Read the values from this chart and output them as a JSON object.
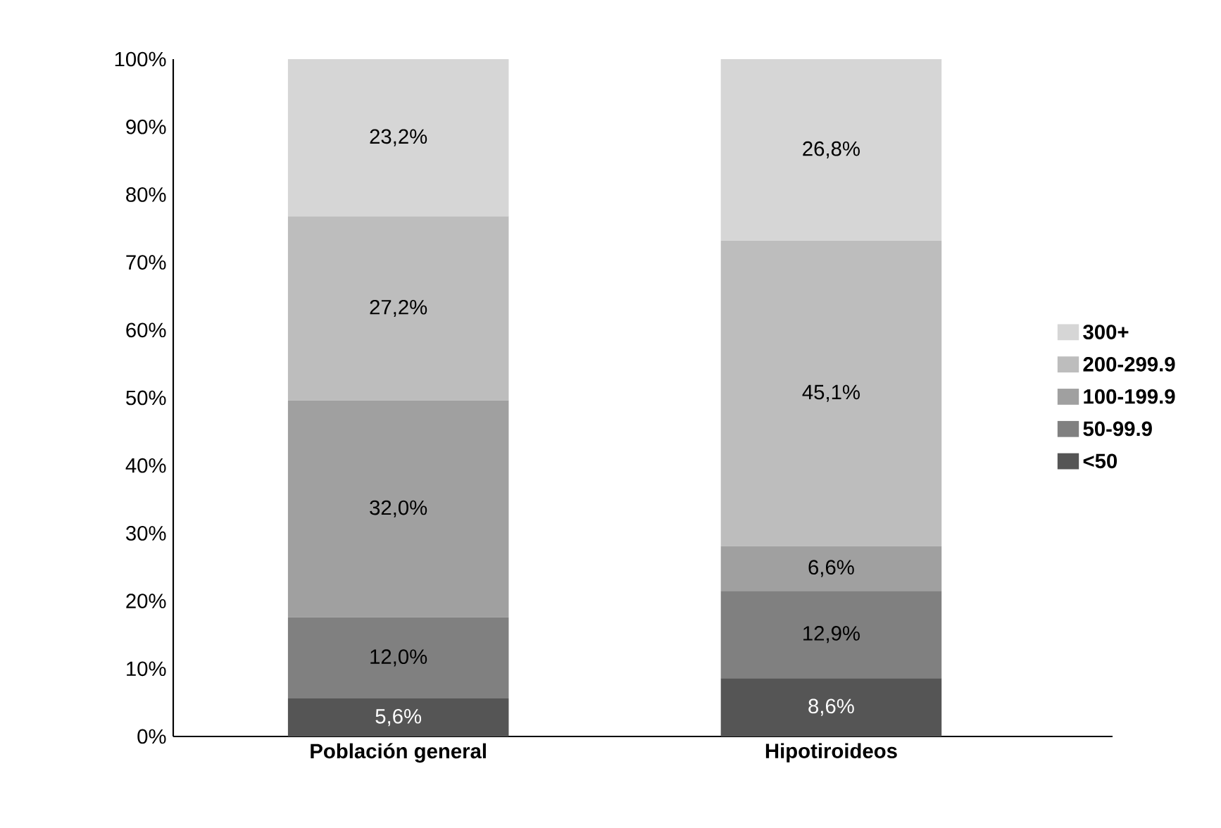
{
  "chart_data": {
    "type": "bar",
    "stacked": true,
    "categories": [
      "Población general",
      "Hipotiroideos"
    ],
    "series": [
      {
        "name": "<50",
        "color": "#555555",
        "values": [
          5.6,
          8.6
        ],
        "value_labels": [
          "5,6%",
          "8,6%"
        ]
      },
      {
        "name": "50-99.9",
        "color": "#808080",
        "values": [
          12.0,
          12.9
        ],
        "value_labels": [
          "12,0%",
          "12,9%"
        ]
      },
      {
        "name": "100-199.9",
        "color": "#a0a0a0",
        "values": [
          32.0,
          6.6
        ],
        "value_labels": [
          "32,0%",
          "6,6%"
        ]
      },
      {
        "name": "200-299.9",
        "color": "#bdbdbd",
        "values": [
          27.2,
          45.1
        ],
        "value_labels": [
          "27,2%",
          "45,1%"
        ]
      },
      {
        "name": "300+",
        "color": "#d6d6d6",
        "values": [
          23.2,
          26.8
        ],
        "value_labels": [
          "23,2%",
          "26,8%"
        ]
      }
    ],
    "ylim": [
      0,
      100
    ],
    "yticks": [
      {
        "value": 0,
        "label": "0%"
      },
      {
        "value": 10,
        "label": "10%"
      },
      {
        "value": 20,
        "label": "20%"
      },
      {
        "value": 30,
        "label": "30%"
      },
      {
        "value": 40,
        "label": "40%"
      },
      {
        "value": 50,
        "label": "50%"
      },
      {
        "value": 60,
        "label": "60%"
      },
      {
        "value": 70,
        "label": "70%"
      },
      {
        "value": 80,
        "label": "80%"
      },
      {
        "value": 90,
        "label": "90%"
      },
      {
        "value": 100,
        "label": "100%"
      }
    ],
    "legend": "right",
    "grid": false
  }
}
